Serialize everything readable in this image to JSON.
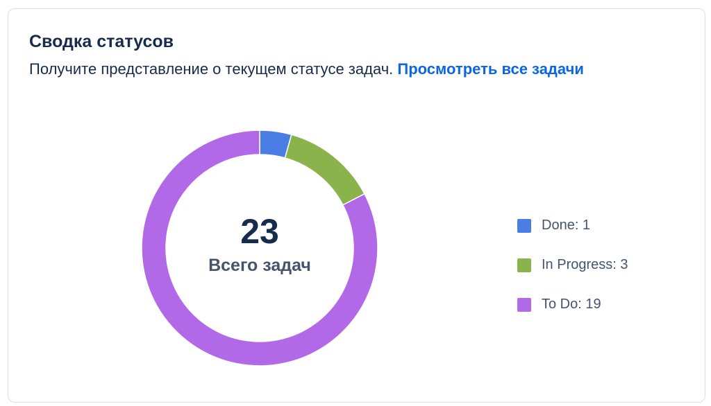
{
  "card": {
    "title": "Сводка статусов",
    "description": "Получите представление о текущем статусе задач.",
    "link_label": "Просмотреть все задачи"
  },
  "summary": {
    "total": "23",
    "total_label": "Всего задач"
  },
  "legend": [
    {
      "label": "Done: 1",
      "color": "#4a7ee5"
    },
    {
      "label": "In Progress: 3",
      "color": "#8bb34b"
    },
    {
      "label": "To Do: 19",
      "color": "#b169e8"
    }
  ],
  "chart_data": {
    "type": "pie",
    "donut": true,
    "categories": [
      "Done",
      "In Progress",
      "To Do"
    ],
    "values": [
      1,
      3,
      19
    ],
    "colors": [
      "#4a7ee5",
      "#8bb34b",
      "#b169e8"
    ],
    "legend_position": "right"
  }
}
